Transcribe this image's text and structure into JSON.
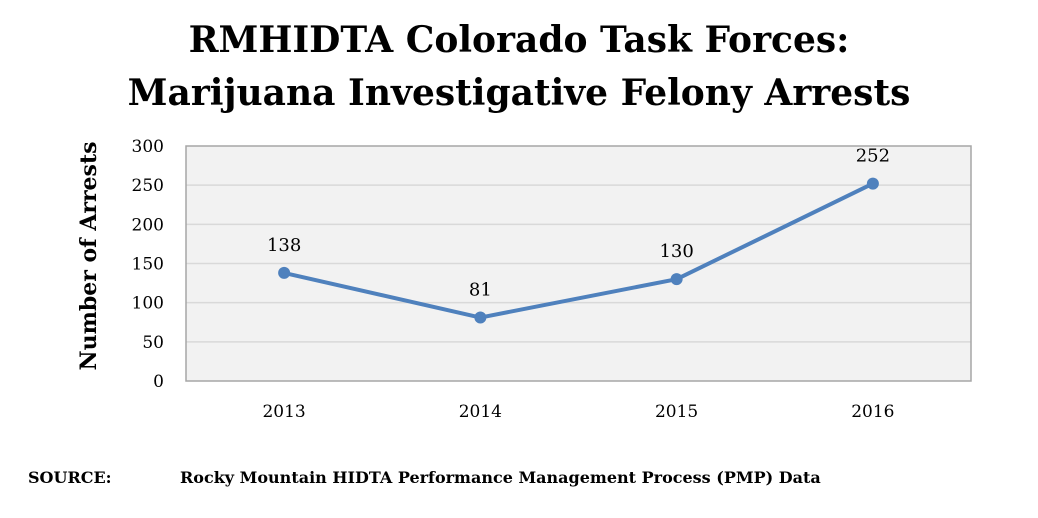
{
  "header": {
    "title_line1": "RMHIDTA Colorado Task Forces:",
    "title_line2": "Marijuana Investigative Felony Arrests"
  },
  "footer": {
    "source_key": "SOURCE:",
    "source_value": "Rocky Mountain HIDTA Performance Management Process (PMP) Data"
  },
  "chart_data": {
    "type": "line",
    "title": "RMHIDTA Colorado Task Forces: Marijuana Investigative Felony Arrests",
    "xlabel": "",
    "ylabel": "Number of Arrests",
    "categories": [
      "2013",
      "2014",
      "2015",
      "2016"
    ],
    "values": [
      138,
      81,
      130,
      252
    ],
    "ylim": [
      0,
      300
    ],
    "yticks": [
      0,
      50,
      100,
      150,
      200,
      250,
      300
    ],
    "grid": true,
    "legend": "none",
    "colors": {
      "line": "#4f81bd",
      "plot_background": "#f2f2f2",
      "grid": "#d9d9d9"
    }
  }
}
